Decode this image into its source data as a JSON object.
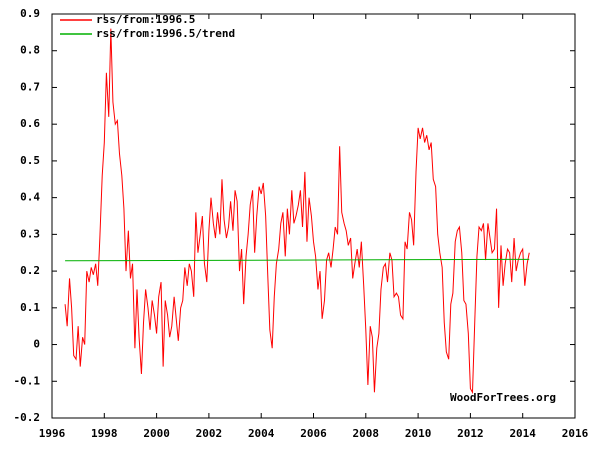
{
  "chart_data": {
    "type": "line",
    "series": [
      {
        "name": "rss/from:1996.5",
        "color": "#ff0000",
        "x": [
          1996.5,
          1996.58,
          1996.67,
          1996.75,
          1996.83,
          1996.92,
          1997,
          1997.08,
          1997.17,
          1997.25,
          1997.33,
          1997.42,
          1997.5,
          1997.58,
          1997.67,
          1997.75,
          1997.83,
          1997.92,
          1998,
          1998.08,
          1998.17,
          1998.25,
          1998.33,
          1998.42,
          1998.5,
          1998.58,
          1998.67,
          1998.75,
          1998.83,
          1998.92,
          1999,
          1999.08,
          1999.17,
          1999.25,
          1999.33,
          1999.42,
          1999.5,
          1999.58,
          1999.67,
          1999.75,
          1999.83,
          1999.92,
          2000,
          2000.08,
          2000.17,
          2000.25,
          2000.33,
          2000.42,
          2000.5,
          2000.58,
          2000.67,
          2000.75,
          2000.83,
          2000.92,
          2001,
          2001.08,
          2001.17,
          2001.25,
          2001.33,
          2001.42,
          2001.5,
          2001.58,
          2001.67,
          2001.75,
          2001.83,
          2001.92,
          2002,
          2002.08,
          2002.17,
          2002.25,
          2002.33,
          2002.42,
          2002.5,
          2002.58,
          2002.67,
          2002.75,
          2002.83,
          2002.92,
          2003,
          2003.08,
          2003.17,
          2003.25,
          2003.33,
          2003.42,
          2003.5,
          2003.58,
          2003.67,
          2003.75,
          2003.83,
          2003.92,
          2004,
          2004.08,
          2004.17,
          2004.25,
          2004.33,
          2004.42,
          2004.5,
          2004.58,
          2004.67,
          2004.75,
          2004.83,
          2004.92,
          2005,
          2005.08,
          2005.17,
          2005.25,
          2005.33,
          2005.42,
          2005.5,
          2005.58,
          2005.67,
          2005.75,
          2005.83,
          2005.92,
          2006,
          2006.08,
          2006.17,
          2006.25,
          2006.33,
          2006.42,
          2006.5,
          2006.58,
          2006.67,
          2006.75,
          2006.83,
          2006.92,
          2007,
          2007.08,
          2007.17,
          2007.25,
          2007.33,
          2007.42,
          2007.5,
          2007.58,
          2007.67,
          2007.75,
          2007.83,
          2007.92,
          2008,
          2008.08,
          2008.17,
          2008.25,
          2008.33,
          2008.42,
          2008.5,
          2008.58,
          2008.67,
          2008.75,
          2008.83,
          2008.92,
          2009,
          2009.08,
          2009.17,
          2009.25,
          2009.33,
          2009.42,
          2009.5,
          2009.58,
          2009.67,
          2009.75,
          2009.83,
          2009.92,
          2010,
          2010.08,
          2010.17,
          2010.25,
          2010.33,
          2010.42,
          2010.5,
          2010.58,
          2010.67,
          2010.75,
          2010.83,
          2010.92,
          2011,
          2011.08,
          2011.17,
          2011.25,
          2011.33,
          2011.42,
          2011.5,
          2011.58,
          2011.67,
          2011.75,
          2011.83,
          2011.92,
          2012,
          2012.08,
          2012.17,
          2012.25,
          2012.33,
          2012.42,
          2012.5,
          2012.58,
          2012.67,
          2012.75,
          2012.83,
          2012.92,
          2013,
          2013.08,
          2013.17,
          2013.25,
          2013.33,
          2013.42,
          2013.5,
          2013.58,
          2013.67,
          2013.75,
          2013.83,
          2013.92,
          2014,
          2014.08,
          2014.17,
          2014.25
        ],
        "values": [
          0.11,
          0.05,
          0.18,
          0.1,
          -0.03,
          -0.04,
          0.05,
          -0.06,
          0.02,
          0.0,
          0.2,
          0.17,
          0.21,
          0.19,
          0.22,
          0.16,
          0.29,
          0.46,
          0.55,
          0.74,
          0.62,
          0.86,
          0.66,
          0.6,
          0.61,
          0.52,
          0.46,
          0.37,
          0.2,
          0.31,
          0.18,
          0.22,
          -0.01,
          0.15,
          0.02,
          -0.08,
          0.06,
          0.15,
          0.1,
          0.04,
          0.12,
          0.08,
          0.03,
          0.13,
          0.17,
          -0.06,
          0.12,
          0.08,
          0.02,
          0.05,
          0.13,
          0.07,
          0.01,
          0.1,
          0.12,
          0.21,
          0.16,
          0.22,
          0.2,
          0.13,
          0.36,
          0.25,
          0.3,
          0.35,
          0.22,
          0.17,
          0.31,
          0.4,
          0.33,
          0.29,
          0.36,
          0.3,
          0.45,
          0.34,
          0.29,
          0.32,
          0.39,
          0.31,
          0.42,
          0.39,
          0.2,
          0.26,
          0.11,
          0.24,
          0.3,
          0.38,
          0.42,
          0.25,
          0.35,
          0.43,
          0.41,
          0.44,
          0.35,
          0.19,
          0.04,
          -0.01,
          0.13,
          0.22,
          0.26,
          0.33,
          0.36,
          0.24,
          0.37,
          0.3,
          0.42,
          0.33,
          0.35,
          0.38,
          0.42,
          0.32,
          0.47,
          0.28,
          0.4,
          0.35,
          0.28,
          0.24,
          0.15,
          0.2,
          0.07,
          0.12,
          0.23,
          0.25,
          0.21,
          0.26,
          0.32,
          0.3,
          0.54,
          0.36,
          0.33,
          0.31,
          0.27,
          0.29,
          0.18,
          0.22,
          0.26,
          0.21,
          0.28,
          0.16,
          0.04,
          -0.11,
          0.05,
          0.02,
          -0.13,
          -0.01,
          0.03,
          0.15,
          0.21,
          0.22,
          0.17,
          0.25,
          0.23,
          0.13,
          0.14,
          0.13,
          0.08,
          0.07,
          0.28,
          0.26,
          0.36,
          0.34,
          0.27,
          0.47,
          0.59,
          0.56,
          0.59,
          0.55,
          0.57,
          0.53,
          0.55,
          0.45,
          0.43,
          0.3,
          0.25,
          0.21,
          0.06,
          -0.02,
          -0.04,
          0.11,
          0.14,
          0.28,
          0.31,
          0.32,
          0.25,
          0.12,
          0.11,
          0.03,
          -0.12,
          -0.13,
          0.07,
          0.24,
          0.32,
          0.31,
          0.33,
          0.23,
          0.33,
          0.29,
          0.25,
          0.26,
          0.37,
          0.1,
          0.27,
          0.16,
          0.22,
          0.26,
          0.25,
          0.17,
          0.29,
          0.2,
          0.23,
          0.25,
          0.26,
          0.16,
          0.22,
          0.25
        ]
      },
      {
        "name": "rss/from:1996.5/trend",
        "color": "#00b000",
        "x": [
          1996.5,
          2014.25
        ],
        "values": [
          0.228,
          0.232
        ]
      }
    ],
    "xlim": [
      1996,
      2016
    ],
    "xticks": [
      1996,
      1998,
      2000,
      2002,
      2004,
      2006,
      2008,
      2010,
      2012,
      2014,
      2016
    ],
    "ylim": [
      -0.2,
      0.9
    ],
    "yticks": [
      -0.2,
      -0.1,
      0,
      0.1,
      0.2,
      0.3,
      0.4,
      0.5,
      0.6,
      0.7,
      0.8,
      0.9
    ],
    "grid": false,
    "legend": "top-left",
    "annotation": "WoodForTrees.org"
  }
}
